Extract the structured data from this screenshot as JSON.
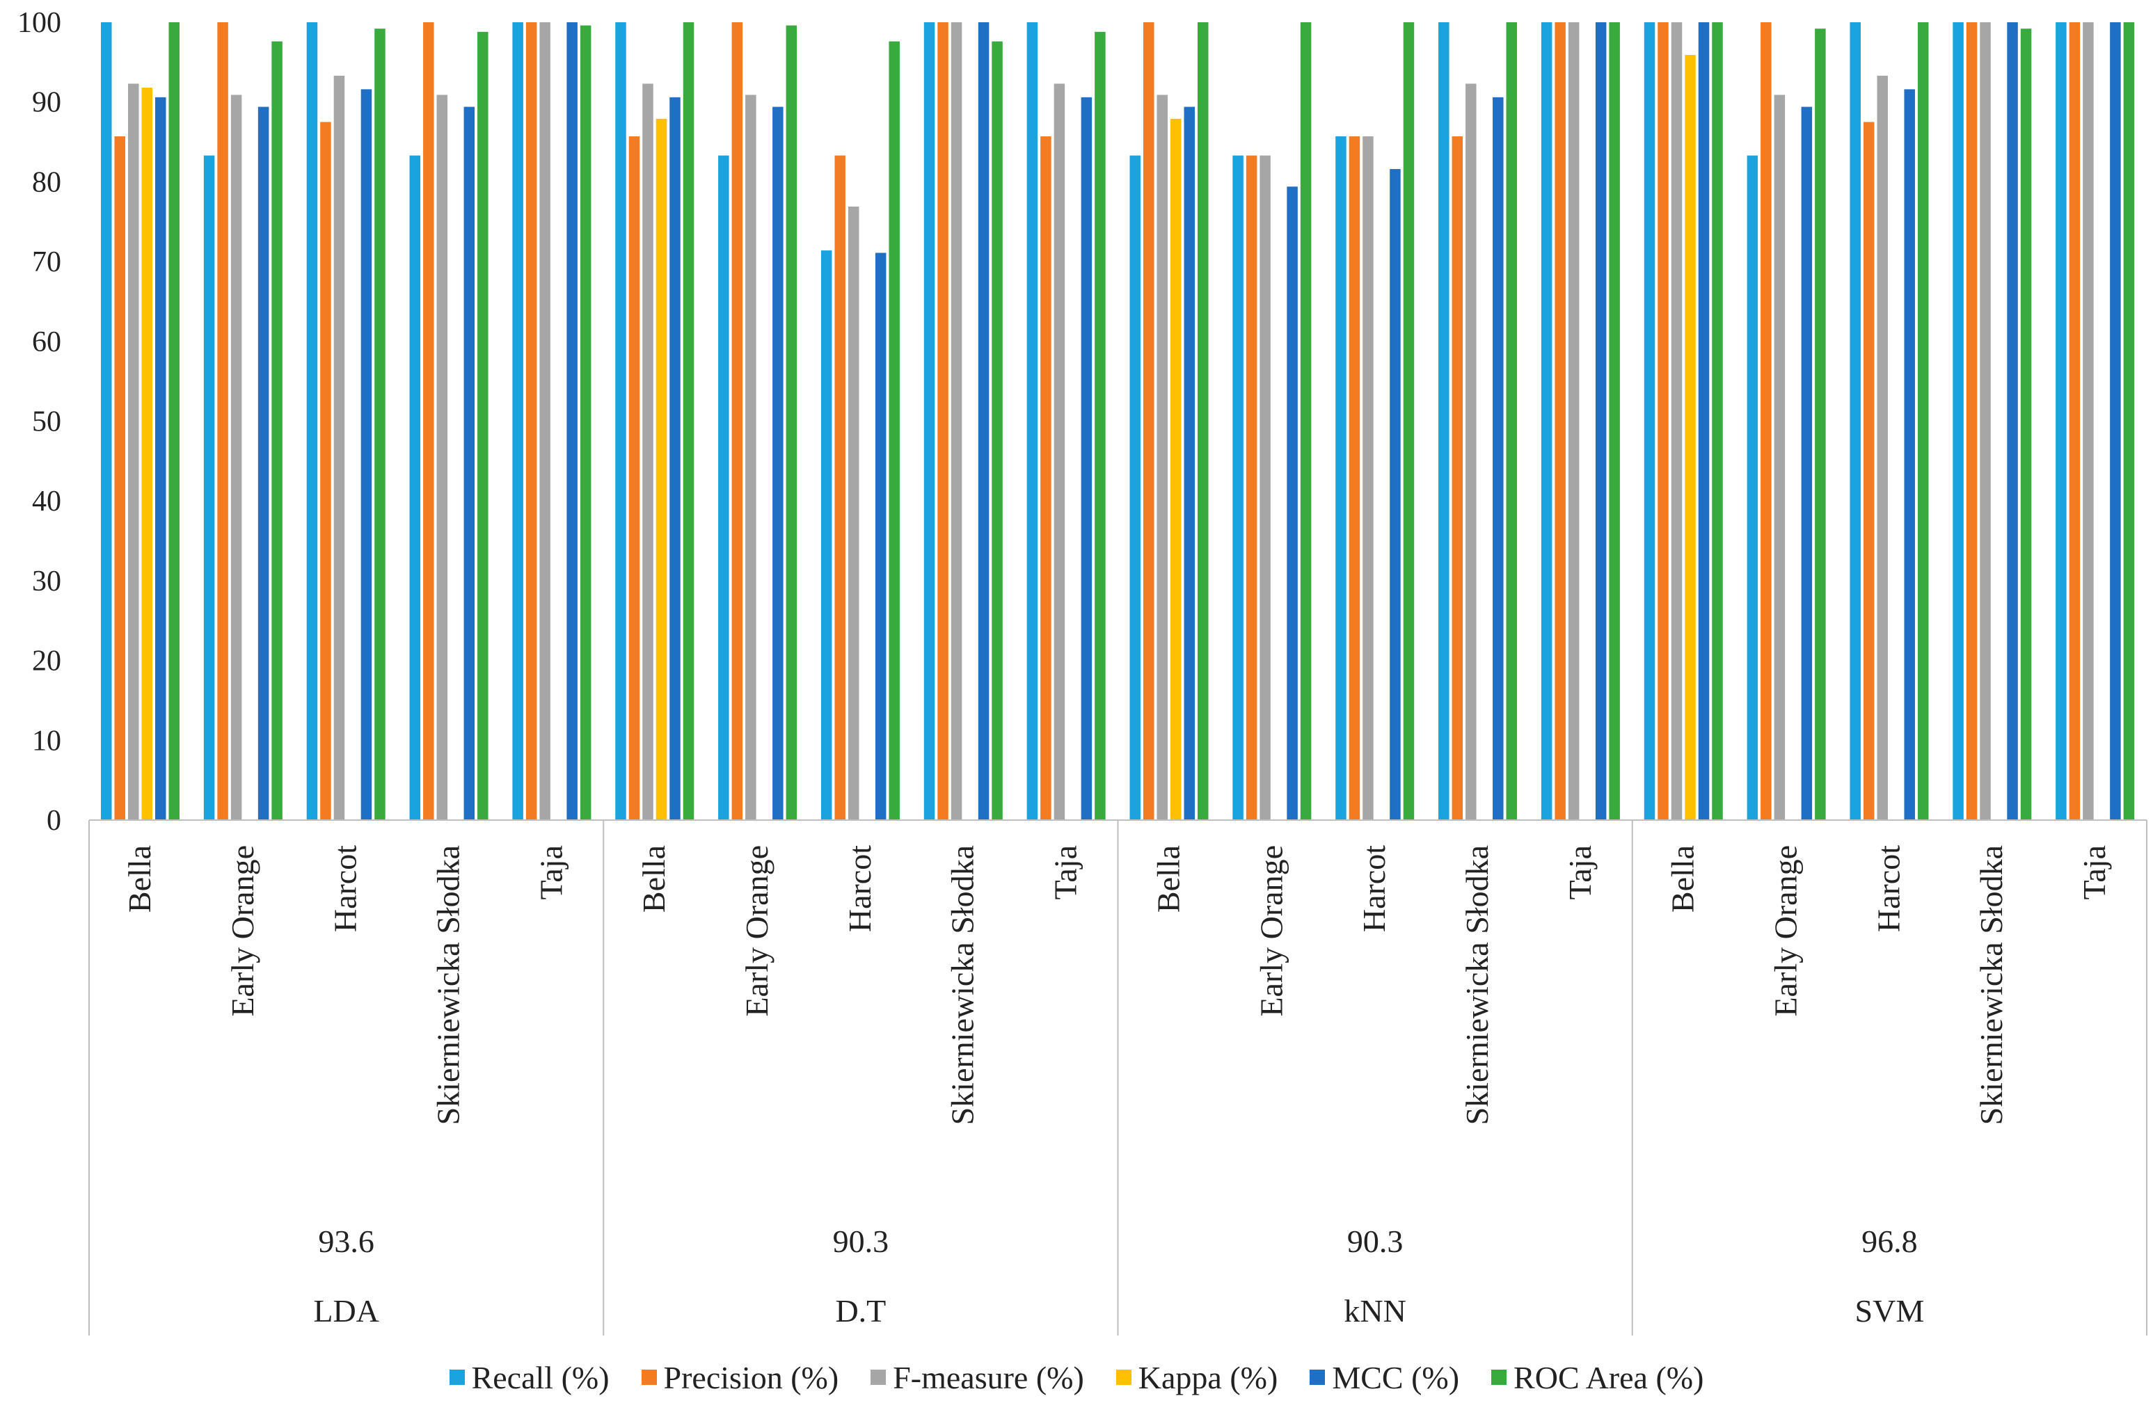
{
  "chart_data": {
    "type": "bar",
    "title": "",
    "xlabel": "",
    "ylabel": "",
    "ylim": [
      0,
      100
    ],
    "yticks": [
      0,
      10,
      20,
      30,
      40,
      50,
      60,
      70,
      80,
      90,
      100
    ],
    "grid": false,
    "legend_position": "bottom",
    "series": [
      {
        "name": "Recall (%)",
        "color": "#1ba3e0"
      },
      {
        "name": "Precision (%)",
        "color": "#f37c23"
      },
      {
        "name": "F-measure (%)",
        "color": "#a6a6a6"
      },
      {
        "name": "Kappa (%)",
        "color": "#ffc000"
      },
      {
        "name": "MCC (%)",
        "color": "#1f6fc4"
      },
      {
        "name": "ROC Area (%)",
        "color": "#39ab3e"
      }
    ],
    "groups": [
      {
        "name": "LDA",
        "accuracy": "93.6",
        "categories": [
          {
            "label": "Bella",
            "values": [
              100,
              85.7,
              92.3,
              91.8,
              90.6,
              100
            ]
          },
          {
            "label": "Early Orange",
            "values": [
              83.3,
              100,
              90.9,
              0,
              89.4,
              97.6
            ]
          },
          {
            "label": "Harcot",
            "values": [
              100,
              87.5,
              93.3,
              0,
              91.6,
              99.2
            ]
          },
          {
            "label": "Skierniewicka Słodka",
            "values": [
              83.3,
              100,
              90.9,
              0,
              89.4,
              98.8
            ]
          },
          {
            "label": "Taja",
            "values": [
              100,
              100,
              100,
              0,
              100,
              99.6
            ]
          }
        ]
      },
      {
        "name": "D.T",
        "accuracy": "90.3",
        "categories": [
          {
            "label": "Bella",
            "values": [
              100,
              85.7,
              92.3,
              87.9,
              90.6,
              100
            ]
          },
          {
            "label": "Early Orange",
            "values": [
              83.3,
              100,
              90.9,
              0,
              89.4,
              99.6
            ]
          },
          {
            "label": "Harcot",
            "values": [
              71.4,
              83.3,
              76.9,
              0,
              71.1,
              97.6
            ]
          },
          {
            "label": "Skierniewicka Słodka",
            "values": [
              100,
              100,
              100,
              0,
              100,
              97.6
            ]
          },
          {
            "label": "Taja",
            "values": [
              100,
              85.7,
              92.3,
              0,
              90.6,
              98.8
            ]
          }
        ]
      },
      {
        "name": "kNN",
        "accuracy": "90.3",
        "categories": [
          {
            "label": "Bella",
            "values": [
              83.3,
              100,
              90.9,
              87.9,
              89.4,
              100
            ]
          },
          {
            "label": "Early Orange",
            "values": [
              83.3,
              83.3,
              83.3,
              0,
              79.4,
              100
            ]
          },
          {
            "label": "Harcot",
            "values": [
              85.7,
              85.7,
              85.7,
              0,
              81.6,
              100
            ]
          },
          {
            "label": "Skierniewicka Słodka",
            "values": [
              100,
              85.7,
              92.3,
              0,
              90.6,
              100
            ]
          },
          {
            "label": "Taja",
            "values": [
              100,
              100,
              100,
              0,
              100,
              100
            ]
          }
        ]
      },
      {
        "name": "SVM",
        "accuracy": "96.8",
        "categories": [
          {
            "label": "Bella",
            "values": [
              100,
              100,
              100,
              95.9,
              100,
              100
            ]
          },
          {
            "label": "Early Orange",
            "values": [
              83.3,
              100,
              90.9,
              0,
              89.4,
              99.2
            ]
          },
          {
            "label": "Harcot",
            "values": [
              100,
              87.5,
              93.3,
              0,
              91.6,
              100
            ]
          },
          {
            "label": "Skierniewicka Słodka",
            "values": [
              100,
              100,
              100,
              0,
              100,
              99.2
            ]
          },
          {
            "label": "Taja",
            "values": [
              100,
              100,
              100,
              0,
              100,
              100
            ]
          }
        ]
      }
    ]
  }
}
